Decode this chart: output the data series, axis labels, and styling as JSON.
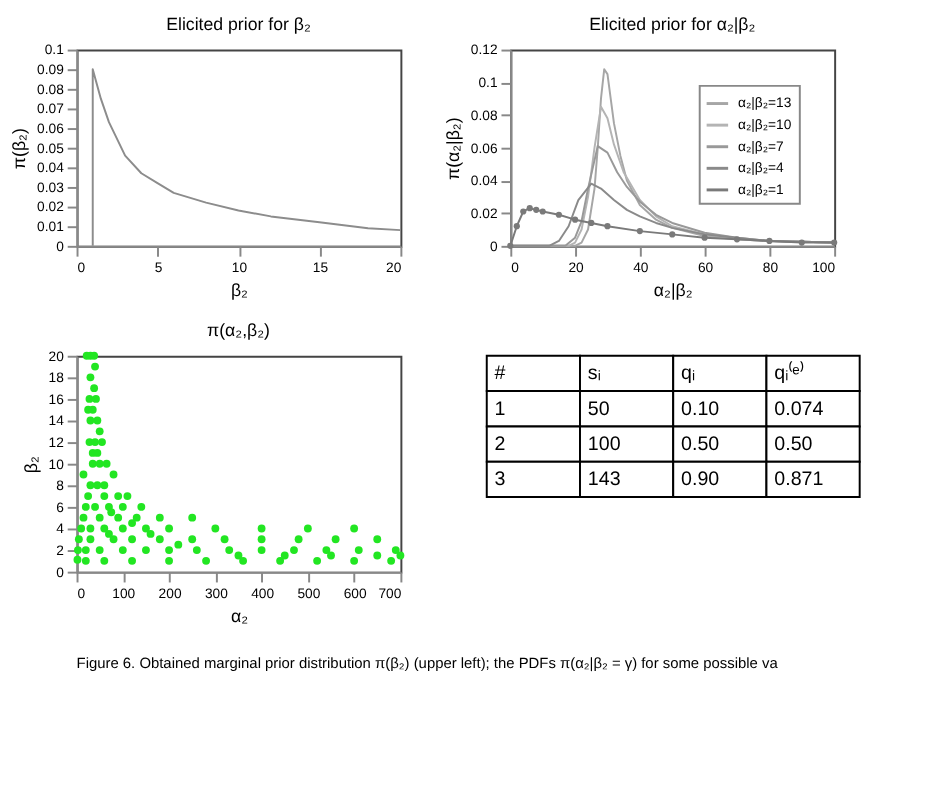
{
  "chart_data": [
    {
      "type": "line",
      "title": "Elicited prior for β₂",
      "xlabel": "β₂",
      "ylabel": "π(β₂)",
      "xlim": [
        0,
        20
      ],
      "xticks": [
        0,
        5,
        10,
        15,
        20
      ],
      "ylim": [
        0,
        0.1
      ],
      "yticks": [
        0,
        0.01,
        0.02,
        0.03,
        0.04,
        0.05,
        0.06,
        0.07,
        0.08,
        0.09,
        0.1
      ],
      "series": [
        {
          "color": "#8c8c8c",
          "x": [
            1,
            1,
            1.5,
            2,
            3,
            4,
            5,
            6,
            8,
            10,
            12,
            15,
            18,
            20
          ],
          "values": [
            0,
            0.09,
            0.075,
            0.063,
            0.046,
            0.037,
            0.032,
            0.027,
            0.022,
            0.018,
            0.015,
            0.012,
            0.009,
            0.008
          ]
        }
      ]
    },
    {
      "type": "line",
      "title": "Elicited prior for α₂|β₂",
      "xlabel": "α₂|β₂",
      "ylabel": "π(α₂|β₂)",
      "xlim": [
        0,
        100
      ],
      "xticks": [
        0,
        20,
        40,
        60,
        80,
        100
      ],
      "ylim": [
        0,
        0.12
      ],
      "yticks": [
        0,
        0.02,
        0.04,
        0.06,
        0.08,
        0.1,
        0.12
      ],
      "legend": "top right",
      "series": [
        {
          "name": "α₂|β₂=13",
          "color": "#a6a6a6",
          "x": [
            0,
            20,
            22,
            24,
            26,
            27,
            28,
            29,
            30,
            31,
            32,
            34,
            36,
            40,
            45,
            50,
            60,
            70,
            80,
            100
          ],
          "values": [
            0,
            0,
            0.002,
            0.01,
            0.035,
            0.06,
            0.09,
            0.108,
            0.105,
            0.09,
            0.075,
            0.055,
            0.04,
            0.025,
            0.016,
            0.011,
            0.006,
            0.004,
            0.003,
            0.002
          ]
        },
        {
          "name": "α₂|β₂=10",
          "color": "#b4b4b4",
          "x": [
            0,
            18,
            20,
            22,
            24,
            26,
            28,
            30,
            32,
            35,
            40,
            45,
            50,
            60,
            70,
            80,
            100
          ],
          "values": [
            0,
            0,
            0.002,
            0.01,
            0.03,
            0.06,
            0.085,
            0.078,
            0.062,
            0.045,
            0.028,
            0.018,
            0.012,
            0.007,
            0.004,
            0.003,
            0.002
          ]
        },
        {
          "name": "α₂|β₂=7",
          "color": "#999999",
          "x": [
            0,
            17,
            20,
            22,
            24,
            27,
            30,
            33,
            36,
            40,
            45,
            50,
            60,
            70,
            80,
            100
          ],
          "values": [
            0,
            0,
            0.005,
            0.015,
            0.035,
            0.061,
            0.057,
            0.045,
            0.036,
            0.027,
            0.019,
            0.014,
            0.008,
            0.005,
            0.003,
            0.002
          ]
        },
        {
          "name": "α₂|β₂=4",
          "color": "#8a8a8a",
          "x": [
            0,
            12,
            15,
            18,
            21,
            25,
            28,
            32,
            36,
            40,
            45,
            50,
            60,
            70,
            80,
            100
          ],
          "values": [
            0,
            0,
            0.003,
            0.012,
            0.028,
            0.038,
            0.035,
            0.028,
            0.022,
            0.018,
            0.014,
            0.011,
            0.007,
            0.005,
            0.003,
            0.002
          ]
        },
        {
          "name": "α₂|β₂=1",
          "color": "#7a7a7a",
          "marker": "circle",
          "x": [
            0,
            2,
            4,
            6,
            8,
            10,
            15,
            20,
            25,
            30,
            40,
            50,
            60,
            70,
            80,
            90,
            100
          ],
          "values": [
            0,
            0.012,
            0.021,
            0.023,
            0.022,
            0.021,
            0.019,
            0.016,
            0.014,
            0.012,
            0.009,
            0.007,
            0.005,
            0.004,
            0.003,
            0.002,
            0.002
          ]
        }
      ]
    },
    {
      "type": "scatter",
      "title": "π(α₂,β₂)",
      "xlabel": "α₂",
      "ylabel": "β₂",
      "xlim": [
        0,
        700
      ],
      "xticks": [
        0,
        100,
        200,
        300,
        400,
        500,
        600,
        700
      ],
      "ylim": [
        0,
        20
      ],
      "yticks": [
        0,
        2,
        4,
        6,
        8,
        10,
        12,
        14,
        16,
        18,
        20
      ],
      "series": [
        {
          "color": "#22e622",
          "x": [
            22,
            30,
            38,
            40,
            30,
            38,
            28,
            42,
            25,
            35,
            30,
            45,
            50,
            28,
            40,
            55,
            35,
            50,
            65,
            80,
            30,
            45,
            60,
            90,
            110,
            20,
            40,
            70,
            100,
            140,
            15,
            50,
            90,
            130,
            180,
            250,
            10,
            30,
            60,
            100,
            150,
            200,
            300,
            400,
            500,
            600,
            5,
            30,
            80,
            120,
            180,
            250,
            320,
            400,
            480,
            560,
            650,
            3,
            20,
            50,
            100,
            150,
            200,
            260,
            330,
            400,
            470,
            540,
            610,
            690,
            2,
            20,
            60,
            120,
            200,
            280,
            360,
            440,
            520,
            600,
            680,
            700,
            35,
            60,
            75,
            120,
            160,
            220,
            350,
            450,
            550,
            650,
            15,
            25,
            45,
            70
          ],
          "values": [
            20,
            20,
            20,
            19,
            18,
            17,
            16,
            16,
            15,
            15,
            14,
            14,
            13,
            12,
            12,
            12,
            10,
            10,
            10,
            9,
            8,
            8,
            8,
            7,
            7,
            6,
            6,
            6,
            6,
            6,
            5,
            5,
            5,
            5,
            5,
            5,
            4,
            4,
            4,
            4,
            4,
            4,
            4,
            4,
            4,
            4,
            3,
            3,
            3,
            3,
            3,
            3,
            3,
            3,
            3,
            3,
            3,
            2,
            2,
            2,
            2,
            2,
            2,
            2,
            2,
            2,
            2,
            2,
            2,
            2,
            1.1,
            1,
            1,
            1,
            1,
            1,
            1,
            1,
            1,
            1,
            1,
            1.5,
            11,
            7,
            5.5,
            4.5,
            3.5,
            2.5,
            1.5,
            1.5,
            1.5,
            1.5,
            9,
            7,
            11,
            3.5
          ]
        }
      ]
    },
    {
      "type": "other",
      "categories": [
        "#",
        "sᵢ",
        "qᵢ",
        "qᵢ⁽ᵉ⁾"
      ],
      "cell_labels": [
        [
          "1",
          "50",
          "0.10",
          "0.074"
        ],
        [
          "2",
          "100",
          "0.50",
          "0.50"
        ],
        [
          "3",
          "143",
          "0.90",
          "0.871"
        ]
      ],
      "annotations": [
        "Figure 6. Obtained marginal prior distribution π(β₂) (upper left); the PDFs π(α₂|β₂ = γ) for some possible va"
      ]
    }
  ]
}
